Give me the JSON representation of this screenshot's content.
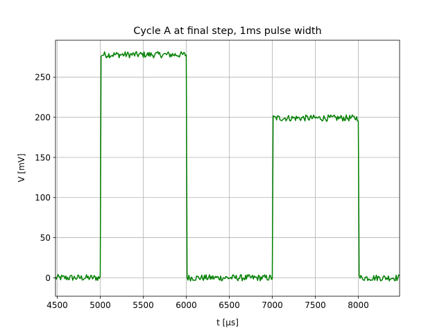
{
  "chart_data": {
    "type": "line",
    "title": "Cycle A at final step, 1ms pulse width",
    "xlabel": "t [μs]",
    "ylabel": "V  [mV]",
    "xlim": [
      4480,
      8480
    ],
    "ylim": [
      -23,
      296
    ],
    "grid": true,
    "x_ticks": [
      4500,
      5000,
      5500,
      6000,
      6500,
      7000,
      7500,
      8000
    ],
    "x_tick_labels": [
      "4500",
      "5000",
      "5500",
      "6000",
      "6500",
      "7000",
      "7500",
      "8000"
    ],
    "y_ticks": [
      0,
      50,
      100,
      150,
      200,
      250
    ],
    "y_tick_labels": [
      "0",
      "50",
      "100",
      "150",
      "200",
      "250"
    ],
    "series": [
      {
        "color": "#008000",
        "x": [
          4480,
          5000,
          5010,
          6000,
          6010,
          7000,
          7010,
          8000,
          8010,
          8480
        ],
        "y": [
          0,
          0,
          278,
          278,
          0,
          0,
          199,
          199,
          0,
          0
        ],
        "noise_amplitude_mV": 4
      }
    ]
  }
}
